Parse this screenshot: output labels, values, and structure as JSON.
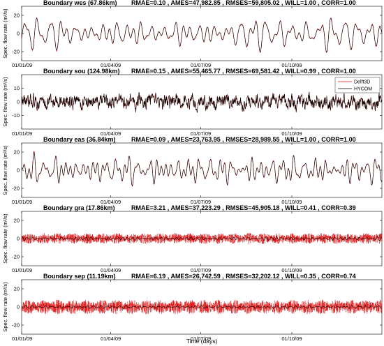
{
  "chart_data": [
    {
      "type": "line",
      "title": "Boundary wes (67.86km)",
      "stats": "RMAE=0.10  ,  AMES=47,982.85  ,  RMSES=59,805.02  ,  WILL=1.00  ,  CORR=1.00",
      "ylabel": "Spec. flow rate (m²/s)",
      "ylim": [
        -30,
        30
      ],
      "yticks": [
        "20",
        "0",
        "-20"
      ],
      "ytick_values": [
        20,
        0,
        -20
      ],
      "xticks": [
        "01/01/09",
        "01/04/09",
        "01/07/09",
        "01/10/09"
      ],
      "series": [
        {
          "name": "Delft3D",
          "color": "#e01010",
          "amplitude": 12,
          "period_days": 7,
          "style": "synoptic"
        },
        {
          "name": "HYCOM",
          "color": "#000000",
          "amplitude": 12,
          "period_days": 7,
          "style": "synoptic"
        }
      ],
      "legend": false
    },
    {
      "type": "line",
      "title": "Boundary sou (124.98km)",
      "stats": "RMAE=0.15  ,  AMES=55,465.77  ,  RMSES=69,581.42  ,  WILL=0.99  ,  CORR=1.00",
      "ylabel": "Spec. flow rate (m²/s)",
      "ylim": [
        -20,
        20
      ],
      "yticks": [
        "10",
        "0",
        "-10"
      ],
      "ytick_values": [
        10,
        0,
        -10
      ],
      "xticks": [
        "01/01/09",
        "01/04/09",
        "01/07/09",
        "01/10/09"
      ],
      "series": [
        {
          "name": "Delft3D",
          "color": "#e01010",
          "amplitude": 4,
          "period_days": 1,
          "style": "noise"
        },
        {
          "name": "HYCOM",
          "color": "#000000",
          "amplitude": 4,
          "period_days": 1,
          "style": "noise"
        }
      ],
      "legend": true,
      "legend_position": "top-right"
    },
    {
      "type": "line",
      "title": "Boundary eas (36.84km)",
      "stats": "RMAE=0.09  ,  AMES=23,763.95  ,  RMSES=28,989.55  ,  WILL=1.00  ,  CORR=1.00",
      "ylabel": "Spec. flow rate (m²/s)",
      "ylim": [
        -30,
        30
      ],
      "yticks": [
        "20",
        "0",
        "-20"
      ],
      "ytick_values": [
        20,
        0,
        -20
      ],
      "xticks": [
        "01/01/09",
        "01/04/09",
        "01/07/09",
        "01/10/09"
      ],
      "series": [
        {
          "name": "Delft3D",
          "color": "#e01010",
          "amplitude": 11,
          "period_days": 8,
          "style": "synoptic"
        },
        {
          "name": "HYCOM",
          "color": "#000000",
          "amplitude": 11,
          "period_days": 8,
          "style": "synoptic"
        }
      ],
      "legend": false
    },
    {
      "type": "line",
      "title": "Boundary gra (17.86km)",
      "stats": "RMAE=3.21  ,  AMES=37,223.29  ,  RMSES=45,905.18  ,  WILL=0.41  ,  CORR=0.39",
      "ylabel": "Spec. flow rate (m²/s)",
      "ylim": [
        -30,
        30
      ],
      "yticks": [
        "20",
        "0",
        "-20"
      ],
      "ytick_values": [
        20,
        0,
        -20
      ],
      "xticks": [
        "01/01/09",
        "01/04/09",
        "01/07/09",
        "01/10/09"
      ],
      "series": [
        {
          "name": "Delft3D",
          "color": "#e01010",
          "amplitude": 6,
          "period_days": 0.5,
          "style": "tidal"
        },
        {
          "name": "HYCOM",
          "color": "#000000",
          "amplitude": 1.5,
          "period_days": 5,
          "style": "synoptic"
        }
      ],
      "legend": false
    },
    {
      "type": "line",
      "title": "Boundary sep (11.19km)",
      "stats": "RMAE=6.19  ,  AMES=26,742.59  ,  RMSES=32,202.12  ,  WILL=0.35  ,  CORR=0.74",
      "ylabel": "Spec. flow rate (m²/s)",
      "ylim": [
        -30,
        30
      ],
      "yticks": [
        "20",
        "0",
        "-20"
      ],
      "ytick_values": [
        20,
        0,
        -20
      ],
      "xticks": [
        "01/01/09",
        "01/04/09",
        "01/07/09",
        "01/10/09"
      ],
      "series": [
        {
          "name": "Delft3D",
          "color": "#e01010",
          "amplitude": 8,
          "period_days": 0.5,
          "style": "tidal"
        },
        {
          "name": "HYCOM",
          "color": "#000000",
          "amplitude": 1.5,
          "period_days": 5,
          "style": "synoptic"
        }
      ],
      "legend": false
    }
  ],
  "xaxis": {
    "label": "Time (days)",
    "tick_dates": [
      "2009-01-01",
      "2009-04-01",
      "2009-07-01",
      "2009-10-01"
    ],
    "range": [
      "2009-01-01",
      "2009-12-31"
    ]
  }
}
